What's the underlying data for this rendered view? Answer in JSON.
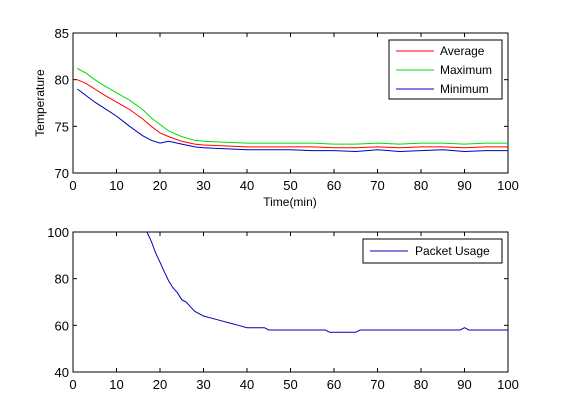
{
  "chart_data": [
    {
      "type": "line",
      "title": "",
      "xlabel": "Time(min)",
      "ylabel": "Temperature",
      "xlim": [
        0,
        100
      ],
      "ylim": [
        70,
        85
      ],
      "xticks": [
        0,
        10,
        20,
        30,
        40,
        50,
        60,
        70,
        80,
        90,
        100
      ],
      "yticks": [
        70,
        75,
        80,
        85
      ],
      "xtick_labels": [
        "0",
        "10",
        "20",
        "30",
        "40",
        "50",
        "60",
        "70",
        "80",
        "90",
        "100"
      ],
      "ytick_labels": [
        "70",
        "75",
        "80",
        "85"
      ],
      "legend_position": "top-right",
      "x": [
        1,
        3,
        5,
        7,
        10,
        13,
        16,
        18,
        20,
        22,
        25,
        28,
        30,
        35,
        40,
        45,
        50,
        55,
        60,
        65,
        70,
        75,
        80,
        85,
        90,
        95,
        100
      ],
      "series": [
        {
          "name": "Average",
          "color": "#ff0000",
          "values": [
            80.0,
            79.6,
            79.0,
            78.4,
            77.6,
            76.8,
            75.8,
            75.0,
            74.3,
            73.9,
            73.4,
            73.1,
            73.0,
            72.9,
            72.8,
            72.8,
            72.8,
            72.8,
            72.7,
            72.7,
            72.8,
            72.7,
            72.8,
            72.8,
            72.7,
            72.8,
            72.8
          ]
        },
        {
          "name": "Maximum",
          "color": "#00dd00",
          "values": [
            81.2,
            80.7,
            80.0,
            79.4,
            78.6,
            77.8,
            76.8,
            75.9,
            75.2,
            74.5,
            73.9,
            73.5,
            73.4,
            73.3,
            73.2,
            73.2,
            73.2,
            73.2,
            73.1,
            73.1,
            73.2,
            73.1,
            73.2,
            73.2,
            73.1,
            73.2,
            73.2
          ]
        },
        {
          "name": "Minimum",
          "color": "#0000bb",
          "values": [
            79.0,
            78.3,
            77.6,
            77.0,
            76.1,
            75.0,
            74.0,
            73.5,
            73.2,
            73.4,
            73.1,
            72.8,
            72.7,
            72.6,
            72.5,
            72.5,
            72.5,
            72.4,
            72.4,
            72.3,
            72.5,
            72.3,
            72.4,
            72.5,
            72.3,
            72.4,
            72.4
          ]
        }
      ]
    },
    {
      "type": "line",
      "title": "",
      "xlabel": "",
      "ylabel": "",
      "xlim": [
        0,
        100
      ],
      "ylim": [
        40,
        100
      ],
      "xticks": [
        0,
        10,
        20,
        30,
        40,
        50,
        60,
        70,
        80,
        90,
        100
      ],
      "yticks": [
        40,
        60,
        80,
        100
      ],
      "xtick_labels": [
        "0",
        "10",
        "20",
        "30",
        "40",
        "50",
        "60",
        "70",
        "80",
        "90",
        "100"
      ],
      "ytick_labels": [
        "40",
        "60",
        "80",
        "100"
      ],
      "legend_position": "top-right",
      "x": [
        17,
        18,
        19,
        20,
        21,
        22,
        23,
        24,
        25,
        26,
        27,
        28,
        29,
        30,
        32,
        34,
        36,
        38,
        40,
        42,
        44,
        45,
        50,
        55,
        58,
        59,
        62,
        64,
        65,
        66,
        70,
        75,
        80,
        85,
        89,
        90,
        91,
        95,
        100
      ],
      "series": [
        {
          "name": "Packet Usage",
          "color": "#0000bb",
          "values": [
            100,
            96,
            91,
            87,
            83,
            79,
            76,
            74,
            71,
            70,
            68,
            66,
            65,
            64,
            63,
            62,
            61,
            60,
            59,
            59,
            59,
            58,
            58,
            58,
            58,
            57,
            57,
            57,
            57,
            58,
            58,
            58,
            58,
            58,
            58,
            59,
            58,
            58,
            58
          ]
        }
      ]
    }
  ]
}
